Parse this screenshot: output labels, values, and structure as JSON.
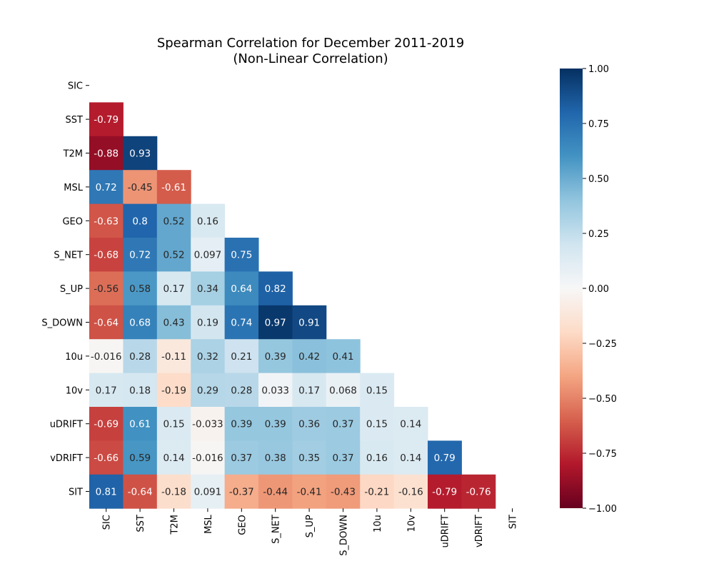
{
  "chart_data": {
    "type": "heatmap",
    "title": "Spearman Correlation for December 2011-2019",
    "subtitle": "(Non-Linear Correlation)",
    "variables": [
      "SIC",
      "SST",
      "T2M",
      "MSL",
      "GEO",
      "S_NET",
      "S_UP",
      "S_DOWN",
      "10u",
      "10v",
      "uDRIFT",
      "vDRIFT",
      "SIT"
    ],
    "mask": "upper-triangle-and-diagonal",
    "lower_triangle": [
      [],
      [
        "-0.79"
      ],
      [
        "-0.88",
        "0.93"
      ],
      [
        "0.72",
        "-0.45",
        "-0.61"
      ],
      [
        "-0.63",
        "0.8",
        "0.52",
        "0.16"
      ],
      [
        "-0.68",
        "0.72",
        "0.52",
        "0.097",
        "0.75"
      ],
      [
        "-0.56",
        "0.58",
        "0.17",
        "0.34",
        "0.64",
        "0.82"
      ],
      [
        "-0.64",
        "0.68",
        "0.43",
        "0.19",
        "0.74",
        "0.97",
        "0.91"
      ],
      [
        "-0.016",
        "0.28",
        "-0.11",
        "0.32",
        "0.21",
        "0.39",
        "0.42",
        "0.41"
      ],
      [
        "0.17",
        "0.18",
        "-0.19",
        "0.29",
        "0.28",
        "0.033",
        "0.17",
        "0.068",
        "0.15"
      ],
      [
        "-0.69",
        "0.61",
        "0.15",
        "-0.033",
        "0.39",
        "0.39",
        "0.36",
        "0.37",
        "0.15",
        "0.14"
      ],
      [
        "-0.66",
        "0.59",
        "0.14",
        "-0.016",
        "0.37",
        "0.38",
        "0.35",
        "0.37",
        "0.16",
        "0.14",
        "0.79"
      ],
      [
        "0.81",
        "-0.64",
        "-0.18",
        "0.091",
        "-0.37",
        "-0.44",
        "-0.41",
        "-0.43",
        "-0.21",
        "-0.16",
        "-0.79",
        "-0.76"
      ]
    ],
    "colormap": "RdBu",
    "vmin": -1.0,
    "vmax": 1.0,
    "colorbar_ticks": [
      "1.00",
      "0.75",
      "0.50",
      "0.25",
      "0.00",
      "−0.25",
      "−0.50",
      "−0.75",
      "−1.00"
    ]
  }
}
